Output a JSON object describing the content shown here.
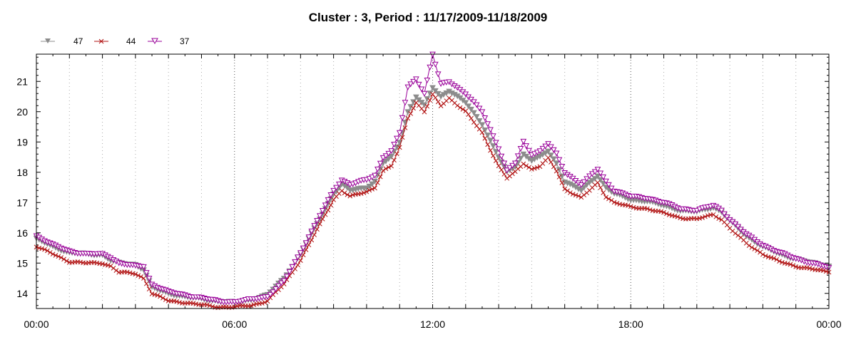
{
  "chart_data": {
    "type": "line",
    "title": "Cluster : 3, Period : 11/17/2009-11/18/2009",
    "xlabel": "",
    "ylabel": "",
    "x_unit": "hours",
    "x_range": [
      0,
      24
    ],
    "y_range": [
      13.5,
      21.9
    ],
    "x_ticks": [
      {
        "value": 0,
        "label": "00:00"
      },
      {
        "value": 6,
        "label": "06:00"
      },
      {
        "value": 12,
        "label": "12:00"
      },
      {
        "value": 18,
        "label": "18:00"
      },
      {
        "value": 24,
        "label": "00:00"
      }
    ],
    "y_ticks": [
      14,
      15,
      16,
      17,
      18,
      19,
      20,
      21
    ],
    "grid": "dotted vertical at every hour, darker at 6-hour marks",
    "legend_position": "top-left",
    "series": [
      {
        "name": "47",
        "color": "#8c8c8c",
        "marker": "triangle-down-filled",
        "points": [
          [
            0,
            15.8
          ],
          [
            0.5,
            15.55
          ],
          [
            1,
            15.35
          ],
          [
            1.5,
            15.3
          ],
          [
            2,
            15.28
          ],
          [
            2.25,
            15.1
          ],
          [
            2.5,
            15.0
          ],
          [
            3,
            14.95
          ],
          [
            3.25,
            14.8
          ],
          [
            3.5,
            14.2
          ],
          [
            4,
            14.0
          ],
          [
            4.5,
            13.9
          ],
          [
            5,
            13.82
          ],
          [
            5.5,
            13.75
          ],
          [
            6,
            13.7
          ],
          [
            6.5,
            13.8
          ],
          [
            7,
            13.95
          ],
          [
            7.5,
            14.5
          ],
          [
            8,
            15.3
          ],
          [
            8.5,
            16.3
          ],
          [
            9,
            17.3
          ],
          [
            9.25,
            17.6
          ],
          [
            9.5,
            17.4
          ],
          [
            10,
            17.5
          ],
          [
            10.25,
            17.7
          ],
          [
            10.5,
            18.3
          ],
          [
            10.75,
            18.5
          ],
          [
            11,
            19.0
          ],
          [
            11.25,
            20.0
          ],
          [
            11.5,
            20.5
          ],
          [
            11.75,
            20.2
          ],
          [
            12,
            20.8
          ],
          [
            12.25,
            20.5
          ],
          [
            12.5,
            20.7
          ],
          [
            13,
            20.3
          ],
          [
            13.5,
            19.6
          ],
          [
            14,
            18.5
          ],
          [
            14.25,
            18.0
          ],
          [
            14.5,
            18.2
          ],
          [
            14.75,
            18.6
          ],
          [
            15,
            18.4
          ],
          [
            15.25,
            18.5
          ],
          [
            15.5,
            18.7
          ],
          [
            15.75,
            18.3
          ],
          [
            16,
            17.7
          ],
          [
            16.5,
            17.4
          ],
          [
            17,
            17.9
          ],
          [
            17.25,
            17.5
          ],
          [
            17.5,
            17.3
          ],
          [
            18,
            17.1
          ],
          [
            18.5,
            17.05
          ],
          [
            19,
            16.9
          ],
          [
            19.5,
            16.75
          ],
          [
            20,
            16.7
          ],
          [
            20.5,
            16.85
          ],
          [
            20.75,
            16.7
          ],
          [
            21,
            16.4
          ],
          [
            21.5,
            15.9
          ],
          [
            22,
            15.55
          ],
          [
            22.5,
            15.3
          ],
          [
            23,
            15.15
          ],
          [
            23.5,
            15.0
          ],
          [
            24,
            14.9
          ]
        ]
      },
      {
        "name": "44",
        "color": "#b01010",
        "marker": "x",
        "points": [
          [
            0,
            15.55
          ],
          [
            0.5,
            15.3
          ],
          [
            1,
            15.05
          ],
          [
            1.5,
            15.0
          ],
          [
            2,
            15.0
          ],
          [
            2.25,
            14.9
          ],
          [
            2.5,
            14.7
          ],
          [
            3,
            14.65
          ],
          [
            3.25,
            14.5
          ],
          [
            3.5,
            14.0
          ],
          [
            4,
            13.75
          ],
          [
            4.5,
            13.7
          ],
          [
            5,
            13.62
          ],
          [
            5.5,
            13.55
          ],
          [
            6,
            13.55
          ],
          [
            6.5,
            13.6
          ],
          [
            7,
            13.75
          ],
          [
            7.5,
            14.3
          ],
          [
            8,
            15.1
          ],
          [
            8.5,
            16.1
          ],
          [
            9,
            17.1
          ],
          [
            9.25,
            17.4
          ],
          [
            9.5,
            17.2
          ],
          [
            10,
            17.35
          ],
          [
            10.25,
            17.5
          ],
          [
            10.5,
            18.05
          ],
          [
            10.75,
            18.2
          ],
          [
            11,
            18.8
          ],
          [
            11.25,
            19.8
          ],
          [
            11.5,
            20.3
          ],
          [
            11.75,
            20.0
          ],
          [
            12,
            20.55
          ],
          [
            12.25,
            20.2
          ],
          [
            12.5,
            20.45
          ],
          [
            13,
            20.0
          ],
          [
            13.5,
            19.3
          ],
          [
            14,
            18.2
          ],
          [
            14.25,
            17.8
          ],
          [
            14.5,
            18.0
          ],
          [
            14.75,
            18.3
          ],
          [
            15,
            18.1
          ],
          [
            15.25,
            18.2
          ],
          [
            15.5,
            18.45
          ],
          [
            15.75,
            18.05
          ],
          [
            16,
            17.45
          ],
          [
            16.5,
            17.15
          ],
          [
            17,
            17.65
          ],
          [
            17.25,
            17.2
          ],
          [
            17.5,
            17.0
          ],
          [
            18,
            16.85
          ],
          [
            18.5,
            16.8
          ],
          [
            19,
            16.65
          ],
          [
            19.5,
            16.5
          ],
          [
            20,
            16.45
          ],
          [
            20.5,
            16.6
          ],
          [
            20.75,
            16.45
          ],
          [
            21,
            16.15
          ],
          [
            21.5,
            15.65
          ],
          [
            22,
            15.3
          ],
          [
            22.5,
            15.05
          ],
          [
            23,
            14.9
          ],
          [
            23.5,
            14.8
          ],
          [
            24,
            14.7
          ]
        ]
      },
      {
        "name": "37",
        "color": "#990099",
        "marker": "triangle-down-open",
        "points": [
          [
            0,
            15.9
          ],
          [
            0.5,
            15.6
          ],
          [
            1,
            15.4
          ],
          [
            1.5,
            15.3
          ],
          [
            2,
            15.3
          ],
          [
            2.25,
            15.2
          ],
          [
            2.5,
            15.0
          ],
          [
            3,
            14.9
          ],
          [
            3.25,
            14.9
          ],
          [
            3.5,
            14.3
          ],
          [
            4,
            14.05
          ],
          [
            4.5,
            13.95
          ],
          [
            5,
            13.85
          ],
          [
            5.5,
            13.75
          ],
          [
            6,
            13.72
          ],
          [
            6.5,
            13.8
          ],
          [
            7,
            13.9
          ],
          [
            7.5,
            14.4
          ],
          [
            8,
            15.35
          ],
          [
            8.5,
            16.4
          ],
          [
            9,
            17.4
          ],
          [
            9.25,
            17.75
          ],
          [
            9.5,
            17.6
          ],
          [
            10,
            17.75
          ],
          [
            10.25,
            17.9
          ],
          [
            10.5,
            18.5
          ],
          [
            10.75,
            18.7
          ],
          [
            11,
            19.3
          ],
          [
            11.25,
            20.8
          ],
          [
            11.5,
            21.1
          ],
          [
            11.75,
            20.6
          ],
          [
            12,
            21.9
          ],
          [
            12.25,
            20.9
          ],
          [
            12.5,
            21.0
          ],
          [
            13,
            20.6
          ],
          [
            13.5,
            20.0
          ],
          [
            14,
            18.8
          ],
          [
            14.25,
            18.05
          ],
          [
            14.5,
            18.3
          ],
          [
            14.75,
            19.0
          ],
          [
            15,
            18.6
          ],
          [
            15.25,
            18.7
          ],
          [
            15.5,
            18.95
          ],
          [
            15.75,
            18.6
          ],
          [
            16,
            18.0
          ],
          [
            16.5,
            17.6
          ],
          [
            17,
            18.1
          ],
          [
            17.25,
            17.7
          ],
          [
            17.5,
            17.4
          ],
          [
            18,
            17.2
          ],
          [
            18.5,
            17.15
          ],
          [
            19,
            17.0
          ],
          [
            19.5,
            16.8
          ],
          [
            20,
            16.75
          ],
          [
            20.5,
            16.9
          ],
          [
            20.75,
            16.75
          ],
          [
            21,
            16.45
          ],
          [
            21.5,
            15.95
          ],
          [
            22,
            15.6
          ],
          [
            22.5,
            15.35
          ],
          [
            23,
            15.15
          ],
          [
            23.5,
            15.0
          ],
          [
            24,
            14.85
          ]
        ]
      }
    ]
  }
}
